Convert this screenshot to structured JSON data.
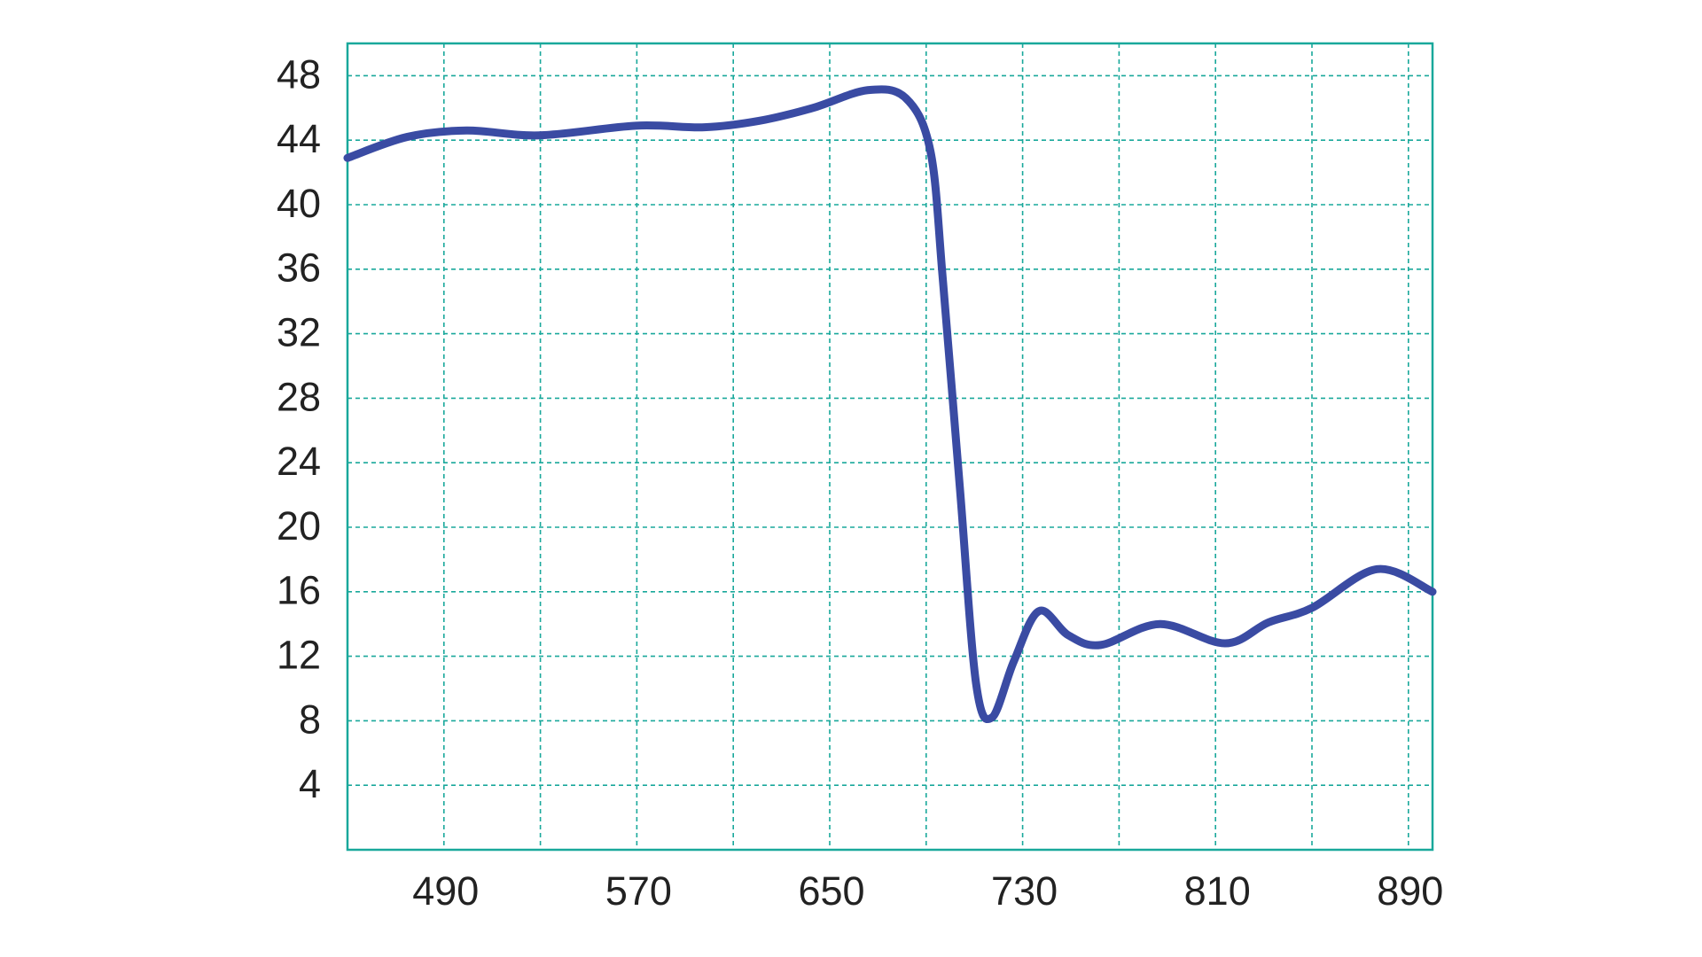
{
  "chart_data": {
    "type": "line",
    "x": [
      450,
      474.7,
      499.4,
      529.6,
      569.6,
      598,
      620.8,
      643,
      665.7,
      681.6,
      691.8,
      697,
      704,
      710.7,
      717.3,
      726.4,
      736.8,
      749,
      762.4,
      787,
      814,
      832,
      850,
      877,
      900
    ],
    "series": [
      {
        "color": "#3a4ba3",
        "values": [
          42.9,
          44.2,
          44.6,
          44.3,
          44.9,
          44.8,
          45.2,
          46.0,
          47.1,
          46.6,
          43.3,
          35.2,
          22.4,
          10.3,
          8.2,
          11.7,
          14.8,
          13.3,
          12.7,
          14.0,
          12.8,
          14.1,
          15.0,
          17.4,
          16.0
        ]
      }
    ],
    "xlim": [
      450,
      900
    ],
    "xticks": [
      490,
      570,
      650,
      730,
      810,
      890
    ],
    "xminor": [
      530,
      610,
      690,
      770,
      850
    ],
    "ylim": [
      0,
      50
    ],
    "yticks": [
      4,
      8,
      12,
      16,
      20,
      24,
      28,
      32,
      36,
      40,
      44,
      48
    ],
    "grid": true,
    "grid_color": "#19a89b"
  }
}
